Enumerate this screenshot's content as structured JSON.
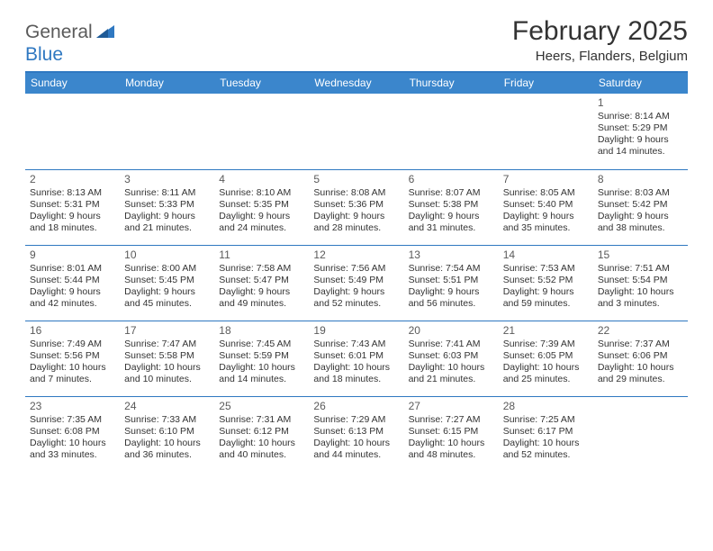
{
  "brand": {
    "part1": "General",
    "part2": "Blue"
  },
  "title": "February 2025",
  "location": "Heers, Flanders, Belgium",
  "colors": {
    "accent": "#2f78c1",
    "header_bg": "#3b86cc",
    "text": "#333333",
    "muted": "#5a5a5a",
    "background": "#ffffff"
  },
  "weekdays": [
    "Sunday",
    "Monday",
    "Tuesday",
    "Wednesday",
    "Thursday",
    "Friday",
    "Saturday"
  ],
  "calendar": {
    "rows": 5,
    "cols": 7,
    "first_weekday_index": 6,
    "days": [
      {
        "n": "1",
        "sunrise": "Sunrise: 8:14 AM",
        "sunset": "Sunset: 5:29 PM",
        "day1": "Daylight: 9 hours",
        "day2": "and 14 minutes."
      },
      {
        "n": "2",
        "sunrise": "Sunrise: 8:13 AM",
        "sunset": "Sunset: 5:31 PM",
        "day1": "Daylight: 9 hours",
        "day2": "and 18 minutes."
      },
      {
        "n": "3",
        "sunrise": "Sunrise: 8:11 AM",
        "sunset": "Sunset: 5:33 PM",
        "day1": "Daylight: 9 hours",
        "day2": "and 21 minutes."
      },
      {
        "n": "4",
        "sunrise": "Sunrise: 8:10 AM",
        "sunset": "Sunset: 5:35 PM",
        "day1": "Daylight: 9 hours",
        "day2": "and 24 minutes."
      },
      {
        "n": "5",
        "sunrise": "Sunrise: 8:08 AM",
        "sunset": "Sunset: 5:36 PM",
        "day1": "Daylight: 9 hours",
        "day2": "and 28 minutes."
      },
      {
        "n": "6",
        "sunrise": "Sunrise: 8:07 AM",
        "sunset": "Sunset: 5:38 PM",
        "day1": "Daylight: 9 hours",
        "day2": "and 31 minutes."
      },
      {
        "n": "7",
        "sunrise": "Sunrise: 8:05 AM",
        "sunset": "Sunset: 5:40 PM",
        "day1": "Daylight: 9 hours",
        "day2": "and 35 minutes."
      },
      {
        "n": "8",
        "sunrise": "Sunrise: 8:03 AM",
        "sunset": "Sunset: 5:42 PM",
        "day1": "Daylight: 9 hours",
        "day2": "and 38 minutes."
      },
      {
        "n": "9",
        "sunrise": "Sunrise: 8:01 AM",
        "sunset": "Sunset: 5:44 PM",
        "day1": "Daylight: 9 hours",
        "day2": "and 42 minutes."
      },
      {
        "n": "10",
        "sunrise": "Sunrise: 8:00 AM",
        "sunset": "Sunset: 5:45 PM",
        "day1": "Daylight: 9 hours",
        "day2": "and 45 minutes."
      },
      {
        "n": "11",
        "sunrise": "Sunrise: 7:58 AM",
        "sunset": "Sunset: 5:47 PM",
        "day1": "Daylight: 9 hours",
        "day2": "and 49 minutes."
      },
      {
        "n": "12",
        "sunrise": "Sunrise: 7:56 AM",
        "sunset": "Sunset: 5:49 PM",
        "day1": "Daylight: 9 hours",
        "day2": "and 52 minutes."
      },
      {
        "n": "13",
        "sunrise": "Sunrise: 7:54 AM",
        "sunset": "Sunset: 5:51 PM",
        "day1": "Daylight: 9 hours",
        "day2": "and 56 minutes."
      },
      {
        "n": "14",
        "sunrise": "Sunrise: 7:53 AM",
        "sunset": "Sunset: 5:52 PM",
        "day1": "Daylight: 9 hours",
        "day2": "and 59 minutes."
      },
      {
        "n": "15",
        "sunrise": "Sunrise: 7:51 AM",
        "sunset": "Sunset: 5:54 PM",
        "day1": "Daylight: 10 hours",
        "day2": "and 3 minutes."
      },
      {
        "n": "16",
        "sunrise": "Sunrise: 7:49 AM",
        "sunset": "Sunset: 5:56 PM",
        "day1": "Daylight: 10 hours",
        "day2": "and 7 minutes."
      },
      {
        "n": "17",
        "sunrise": "Sunrise: 7:47 AM",
        "sunset": "Sunset: 5:58 PM",
        "day1": "Daylight: 10 hours",
        "day2": "and 10 minutes."
      },
      {
        "n": "18",
        "sunrise": "Sunrise: 7:45 AM",
        "sunset": "Sunset: 5:59 PM",
        "day1": "Daylight: 10 hours",
        "day2": "and 14 minutes."
      },
      {
        "n": "19",
        "sunrise": "Sunrise: 7:43 AM",
        "sunset": "Sunset: 6:01 PM",
        "day1": "Daylight: 10 hours",
        "day2": "and 18 minutes."
      },
      {
        "n": "20",
        "sunrise": "Sunrise: 7:41 AM",
        "sunset": "Sunset: 6:03 PM",
        "day1": "Daylight: 10 hours",
        "day2": "and 21 minutes."
      },
      {
        "n": "21",
        "sunrise": "Sunrise: 7:39 AM",
        "sunset": "Sunset: 6:05 PM",
        "day1": "Daylight: 10 hours",
        "day2": "and 25 minutes."
      },
      {
        "n": "22",
        "sunrise": "Sunrise: 7:37 AM",
        "sunset": "Sunset: 6:06 PM",
        "day1": "Daylight: 10 hours",
        "day2": "and 29 minutes."
      },
      {
        "n": "23",
        "sunrise": "Sunrise: 7:35 AM",
        "sunset": "Sunset: 6:08 PM",
        "day1": "Daylight: 10 hours",
        "day2": "and 33 minutes."
      },
      {
        "n": "24",
        "sunrise": "Sunrise: 7:33 AM",
        "sunset": "Sunset: 6:10 PM",
        "day1": "Daylight: 10 hours",
        "day2": "and 36 minutes."
      },
      {
        "n": "25",
        "sunrise": "Sunrise: 7:31 AM",
        "sunset": "Sunset: 6:12 PM",
        "day1": "Daylight: 10 hours",
        "day2": "and 40 minutes."
      },
      {
        "n": "26",
        "sunrise": "Sunrise: 7:29 AM",
        "sunset": "Sunset: 6:13 PM",
        "day1": "Daylight: 10 hours",
        "day2": "and 44 minutes."
      },
      {
        "n": "27",
        "sunrise": "Sunrise: 7:27 AM",
        "sunset": "Sunset: 6:15 PM",
        "day1": "Daylight: 10 hours",
        "day2": "and 48 minutes."
      },
      {
        "n": "28",
        "sunrise": "Sunrise: 7:25 AM",
        "sunset": "Sunset: 6:17 PM",
        "day1": "Daylight: 10 hours",
        "day2": "and 52 minutes."
      }
    ]
  }
}
